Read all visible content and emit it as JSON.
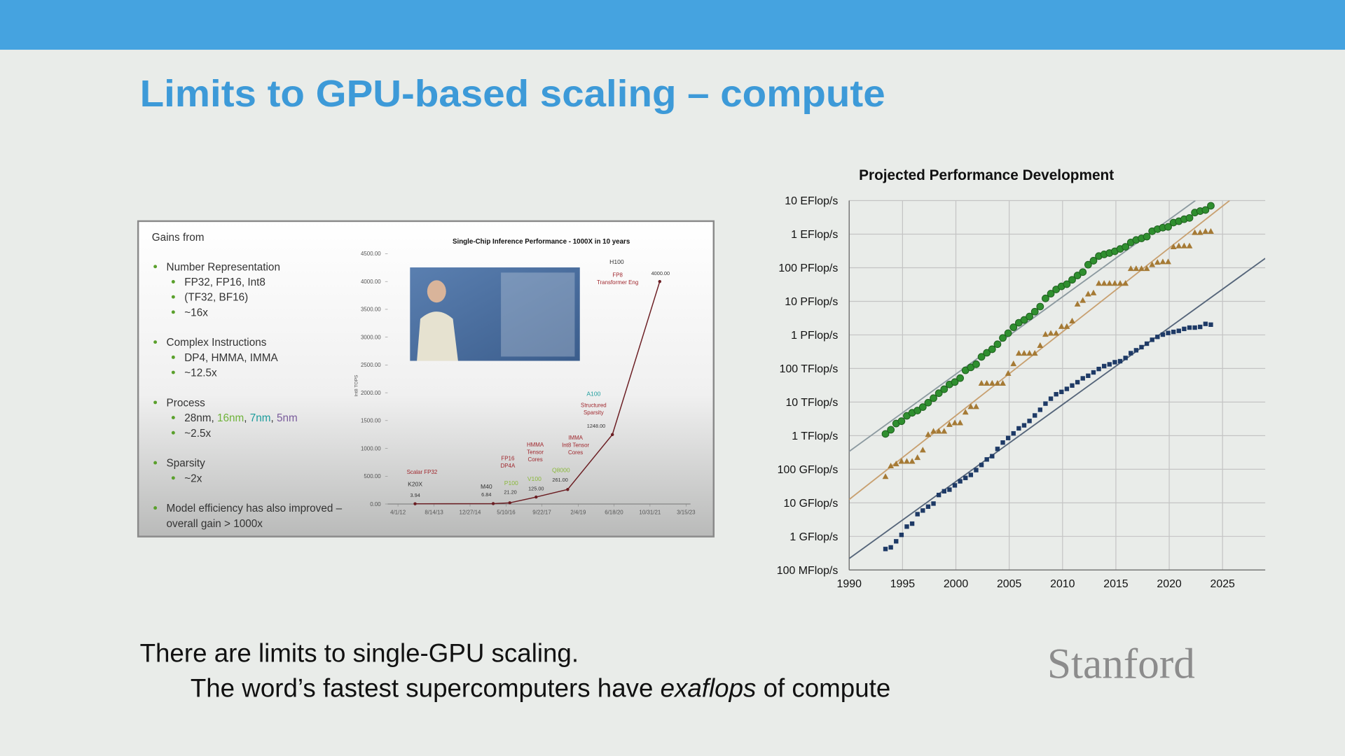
{
  "slide": {
    "title": "Limits to GPU-based scaling – compute",
    "inset": {
      "heading": "Gains from",
      "groups": [
        {
          "label": [
            "Number Representation"
          ],
          "items": [
            [
              {
                "text": "FP32, FP16, Int8"
              }
            ],
            [
              {
                "text": "(TF32, BF16)"
              }
            ],
            [
              {
                "text": "~16x"
              }
            ]
          ]
        },
        {
          "label": [
            "Complex Instructions"
          ],
          "items": [
            [
              {
                "text": "DP4, HMMA, IMMA"
              }
            ],
            [
              {
                "text": "~12.5x"
              }
            ]
          ]
        },
        {
          "label": [
            "Process"
          ],
          "items": [
            [
              {
                "text": "28nm, "
              },
              {
                "text": "16nm",
                "color": "#6fb33a"
              },
              {
                "text": ", "
              },
              {
                "text": "7nm",
                "color": "#1b9c9c"
              },
              {
                "text": ", "
              },
              {
                "text": "5nm",
                "color": "#7a5c9c"
              }
            ],
            [
              {
                "text": "~2.5x"
              }
            ]
          ]
        },
        {
          "label": [
            "Sparsity"
          ],
          "items": [
            [
              {
                "text": "~2x"
              }
            ]
          ]
        },
        {
          "label": [
            "Model efficiency has also improved –",
            "overall gain > 1000x"
          ],
          "items": []
        }
      ]
    },
    "caption": [
      [
        {
          "text": "There are limits to single-GPU scaling."
        }
      ],
      [
        {
          "text": "The word’s fastest supercomputers have "
        },
        {
          "text": "exaflops",
          "style": "italic"
        },
        {
          "text": " of compute"
        }
      ]
    ],
    "logo": "Stanford"
  },
  "chart_data": [
    {
      "type": "line",
      "title": "Single-Chip Inference Performance - 1000X in 10 years",
      "y_label": "Int8 TOPS",
      "x": [
        2012.9,
        2015.87,
        2016.5,
        2017.5,
        2018.7,
        2020.4,
        2022.2
      ],
      "values": [
        3.94,
        6.84,
        21.2,
        125,
        261,
        1248,
        4000
      ],
      "value_labels": [
        "3.94",
        "6.84",
        "21.20",
        "125.00",
        "261.00",
        "1248.00",
        "4000.00"
      ],
      "point_names": [
        "K20X",
        "M40",
        "P100",
        "V100",
        "Q8000",
        "A100",
        "H100"
      ],
      "name_colors": [
        "#333333",
        "#333333",
        "#8ab83a",
        "#8ab83a",
        "#8ab83a",
        "#1b9c9c",
        "#333333"
      ],
      "notes": [
        [
          "Scalar FP32"
        ],
        null,
        [
          "FP16",
          "DP4A"
        ],
        [
          "HMMA",
          "Tensor",
          "Cores"
        ],
        [
          "IMMA",
          "Int8 Tensor",
          "Cores"
        ],
        [
          "Structured",
          "Sparsity"
        ],
        [
          "FP8",
          "Transformer Eng"
        ]
      ],
      "color": "#6b1d22",
      "xlim": [
        2011.86,
        2023.37
      ],
      "xticks": [
        {
          "value": 2012.25,
          "label": "4/1/12"
        },
        {
          "value": 2013.62,
          "label": "8/14/13"
        },
        {
          "value": 2014.99,
          "label": "12/27/14"
        },
        {
          "value": 2016.36,
          "label": "5/10/16"
        },
        {
          "value": 2017.72,
          "label": "9/22/17"
        },
        {
          "value": 2019.1,
          "label": "2/4/19"
        },
        {
          "value": 2020.46,
          "label": "6/18/20"
        },
        {
          "value": 2021.83,
          "label": "10/31/21"
        },
        {
          "value": 2023.2,
          "label": "3/15/23"
        }
      ],
      "ylim": [
        0,
        4500
      ],
      "yticks": [
        {
          "value": 0,
          "label": "0.00"
        },
        {
          "value": 500,
          "label": "500.00"
        },
        {
          "value": 1000,
          "label": "1000.00"
        },
        {
          "value": 1500,
          "label": "1500.00"
        },
        {
          "value": 2000,
          "label": "2000.00"
        },
        {
          "value": 2500,
          "label": "2500.00"
        },
        {
          "value": 3000,
          "label": "3000.00"
        },
        {
          "value": 3500,
          "label": "3500.00"
        },
        {
          "value": 4000,
          "label": "4000.00"
        },
        {
          "value": 4500,
          "label": "4500.00"
        }
      ]
    },
    {
      "type": "scatter",
      "title": "Projected Performance Development",
      "log_y": true,
      "grid": true,
      "x": [
        1993.4,
        1993.9,
        1994.4,
        1994.9,
        1995.4,
        1995.9,
        1996.4,
        1996.9,
        1997.4,
        1997.9,
        1998.4,
        1998.9,
        1999.4,
        1999.9,
        2000.4,
        2000.9,
        2001.4,
        2001.9,
        2002.4,
        2002.9,
        2003.4,
        2003.9,
        2004.4,
        2004.9,
        2005.4,
        2005.9,
        2006.4,
        2006.9,
        2007.4,
        2007.9,
        2008.4,
        2008.9,
        2009.4,
        2009.9,
        2010.4,
        2010.9,
        2011.4,
        2011.9,
        2012.4,
        2012.9,
        2013.4,
        2013.9,
        2014.4,
        2014.9,
        2015.4,
        2015.9,
        2016.4,
        2016.9,
        2017.4,
        2017.9,
        2018.4,
        2018.9,
        2019.4,
        2019.9,
        2020.4,
        2020.9,
        2021.4,
        2021.9,
        2022.4,
        2022.9,
        2023.4,
        2023.9
      ],
      "series": [
        {
          "color": "#2f8f2f",
          "marker": "circle",
          "values": [
            1130000000000.0,
            1500000000000.0,
            2300000000000.0,
            2700000000000.0,
            3900000000000.0,
            4800000000000.0,
            5600000000000.0,
            7100000000000.0,
            9600000000000.0,
            13100000000000.0,
            18400000000000.0,
            24100000000000.0,
            33500000000000.0,
            39500000000000.0,
            51700000000000.0,
            88200000000000.0,
            108000000000000.0,
            134000000000000.0,
            222000000000000.0,
            293000000000000.0,
            374000000000000.0,
            528000000000000.0,
            813000000000000.0,
            1127000000000000.0,
            1690000000000000.0,
            2300000000000000.0,
            2790000000000000.0,
            3530000000000000.0,
            4920000000000000.0,
            6970000000000000.0,
            1.22e+16,
            1.69e+16,
            2.26e+16,
            2.79e+16,
            3.24e+16,
            4.37e+16,
            5.89e+16,
            7.42e+16,
            1.23e+17,
            1.62e+17,
            2.23e+17,
            2.5e+17,
            2.74e+17,
            3.09e+17,
            3.63e+17,
            4.2e+17,
            5.67e+17,
            6.72e+17,
            7.49e+17,
            8.45e+17,
            1.22e+18,
            1.41e+18,
            1.56e+18,
            1.65e+18,
            2.21e+18,
            2.43e+18,
            2.79e+18,
            3.04e+18,
            4.4e+18,
            4.86e+18,
            5.24e+18,
            7e+18
          ]
        },
        {
          "color": "#a57a35",
          "marker": "triangle",
          "values": [
            59700000000.0,
            124000000000.0,
            143000000000.0,
            170000000000.0,
            170000000000.0,
            170000000000.0,
            220000000000.0,
            368000000000.0,
            1068000000000.0,
            1340000000000.0,
            1340000000000.0,
            1340000000000.0,
            2120000000000.0,
            2380000000000.0,
            2380000000000.0,
            4940000000000.0,
            7230000000000.0,
            7230000000000.0,
            35900000000000.0,
            35900000000000.0,
            35900000000000.0,
            35900000000000.0,
            35900000000000.0,
            70700000000000.0,
            136800000000000.0,
            280600000000000.0,
            280600000000000.0,
            280600000000000.0,
            280600000000000.0,
            478200000000000.0,
            1026000000000000.0,
            1105000000000000.0,
            1105000000000000.0,
            1759000000000000.0,
            1759000000000000.0,
            2566000000000000.0,
            8162000000000000.0,
            1.051e+16,
            1.632e+16,
            1.759e+16,
            3.386e+16,
            3.386e+16,
            3.386e+16,
            3.386e+16,
            3.386e+16,
            3.386e+16,
            9.301e+16,
            9.301e+16,
            9.301e+16,
            9.301e+16,
            1.223e+17,
            1.435e+17,
            1.486e+17,
            1.486e+17,
            4.155e+17,
            4.42e+17,
            4.42e+17,
            4.42e+17,
            1.102e+18,
            1.102e+18,
            1.194e+18,
            1.194e+18
          ]
        },
        {
          "color": "#1e3a66",
          "marker": "square",
          "values": [
            422000000.0,
            472000000.0,
            715000000.0,
            1110000000.0,
            1960000000.0,
            2400000000.0,
            4600000000.0,
            5900000000.0,
            7700000000.0,
            9500000000.0,
            17100000000.0,
            22100000000.0,
            24700000000.0,
            33100000000.0,
            43800000000.0,
            55100000000.0,
            67800000000.0,
            94300000000.0,
            134000000000.0,
            196000000000.0,
            245000000000.0,
            403000000000.0,
            624000000000.0,
            851000000000.0,
            1170000000000.0,
            1650000000000.0,
            2030000000000.0,
            2740000000000.0,
            4000000000000.0,
            5900000000000.0,
            9000000000000.0,
            12600000000000.0,
            17100000000000.0,
            20100000000000.0,
            24700000000000.0,
            31100000000000.0,
            39100000000000.0,
            50900000000000.0,
            60800000000000.0,
            76500000000000.0,
            96600000000000.0,
            118000000000000.0,
            133000000000000.0,
            154000000000000.0,
            165000000000000.0,
            206000000000000.0,
            286000000000000.0,
            349000000000000.0,
            432000000000000.0,
            548000000000000.0,
            716000000000000.0,
            874000000000000.0,
            1020000000000000.0,
            1140000000000000.0,
            1230000000000000.0,
            1320000000000000.0,
            1510000000000000.0,
            1650000000000000.0,
            1650000000000000.0,
            1730000000000000.0,
            2130000000000000.0,
            2020000000000000.0
          ]
        }
      ],
      "trend_lines": [
        {
          "color": "#8c9aa0",
          "x": [
            1990,
            2022.45
          ],
          "values": [
            340000000000.0,
            1e+19
          ]
        },
        {
          "color": "#c8a070",
          "x": [
            1990,
            2025.66
          ],
          "values": [
            12600000000.0,
            1e+19
          ]
        },
        {
          "color": "#55657a",
          "x": [
            1990,
            2029
          ],
          "values": [
            220000000.0,
            1.9e+17
          ]
        }
      ],
      "xlim": [
        1990,
        2029
      ],
      "xticks": [
        1990,
        1995,
        2000,
        2005,
        2010,
        2015,
        2020,
        2025
      ],
      "ylim": [
        100000000.0,
        1e+19
      ],
      "yticks": [
        {
          "value": 100000000.0,
          "label": "100 MFlop/s"
        },
        {
          "value": 1000000000.0,
          "label": "1 GFlop/s"
        },
        {
          "value": 10000000000.0,
          "label": "10 GFlop/s"
        },
        {
          "value": 100000000000.0,
          "label": "100 GFlop/s"
        },
        {
          "value": 1000000000000.0,
          "label": "1 TFlop/s"
        },
        {
          "value": 10000000000000.0,
          "label": "10 TFlop/s"
        },
        {
          "value": 100000000000000.0,
          "label": "100 TFlop/s"
        },
        {
          "value": 1000000000000000.0,
          "label": "1 PFlop/s"
        },
        {
          "value": 1e+16,
          "label": "10 PFlop/s"
        },
        {
          "value": 1e+17,
          "label": "100 PFlop/s"
        },
        {
          "value": 1e+18,
          "label": "1 EFlop/s"
        },
        {
          "value": 1e+19,
          "label": "10 EFlop/s"
        }
      ]
    }
  ]
}
